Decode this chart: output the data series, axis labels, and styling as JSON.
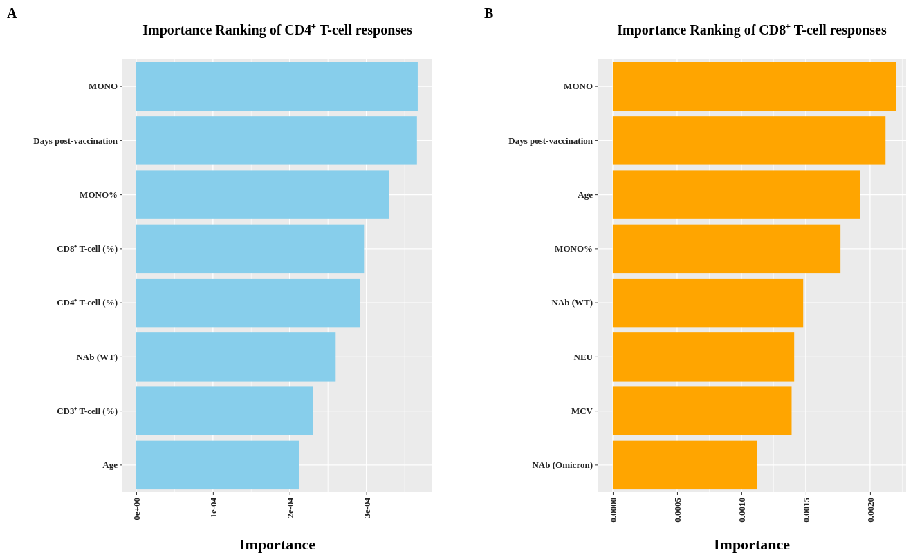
{
  "chart_data": [
    {
      "type": "bar",
      "orientation": "horizontal",
      "title": "Importance Ranking of CD4⁺ T-cell responses",
      "xlabel": "Importance",
      "annotations": [
        "A"
      ],
      "categories": [
        "MONO",
        "Days post-vaccination",
        "MONO%",
        "CD8⁺ T-cell (%)",
        "CD4⁺ T-cell (%)",
        "NAb (WT)",
        "CD3⁺ T-cell (%)",
        "Age"
      ],
      "values": [
        0.000367,
        0.000366,
        0.00033,
        0.000297,
        0.000292,
        0.00026,
        0.00023,
        0.000212
      ],
      "color": "#87ceeb",
      "xlim": [
        -1.8e-05,
        0.000386
      ],
      "xticks": [
        {
          "value": 0,
          "label": "0e+00"
        },
        {
          "value": 0.0001,
          "label": "1e-04"
        },
        {
          "value": 0.0002,
          "label": "2e-04"
        },
        {
          "value": 0.0003,
          "label": "3e-04"
        }
      ],
      "grid": true
    },
    {
      "type": "bar",
      "orientation": "horizontal",
      "title": "Importance Ranking of CD8⁺ T-cell responses",
      "xlabel": "Importance",
      "annotations": [
        "B"
      ],
      "categories": [
        "MONO",
        "Days post-vaccination",
        "Age",
        "MONO%",
        "NAb (WT)",
        "NEU",
        "MCV",
        "NAb (Omicron)"
      ],
      "values": [
        0.0022,
        0.00212,
        0.00192,
        0.00177,
        0.00148,
        0.00141,
        0.00139,
        0.00112
      ],
      "color": "#ffa500",
      "xlim": [
        -0.000118,
        0.00228
      ],
      "xticks": [
        {
          "value": 0,
          "label": "0.0000"
        },
        {
          "value": 0.0005,
          "label": "0.0005"
        },
        {
          "value": 0.001,
          "label": "0.0010"
        },
        {
          "value": 0.0015,
          "label": "0.0015"
        },
        {
          "value": 0.002,
          "label": "0.0020"
        }
      ],
      "grid": true
    }
  ]
}
